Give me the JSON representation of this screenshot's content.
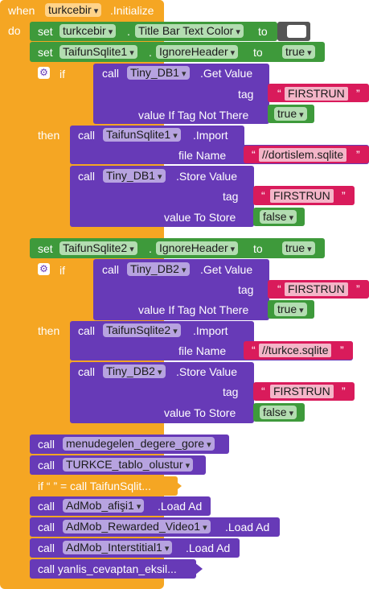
{
  "event": {
    "when": "when",
    "component": "turkcebir",
    "event_name": ".Initialize",
    "do": "do"
  },
  "kw": {
    "set": "set",
    "to": "to",
    "call": "call",
    "if": "if",
    "then": "then",
    "dot": ".",
    "q": "“",
    "qe": "”"
  },
  "colors": {
    "event": "#F5A623",
    "set_block": "#3E9A3B",
    "call_block": "#673AB7",
    "text_block": "#D91B5B"
  },
  "b1": {
    "component": "turkcebir",
    "property": "Title Bar Text Color"
  },
  "b2": {
    "component": "TaifunSqlite1",
    "property": "IgnoreHeader",
    "value": "true"
  },
  "if1": {
    "call_component": "Tiny_DB1",
    "call_method": ".Get Value",
    "tag_label": "tag",
    "tag_value": "FIRSTRUN",
    "default_label": "value If Tag Not There",
    "default_value": "true",
    "import_component": "TaifunSqlite1",
    "import_method": ".Import",
    "file_label": "file Name",
    "file_value": "//dortislem.sqlite",
    "store_component": "Tiny_DB1",
    "store_method": ".Store Value",
    "store_tag_label": "tag",
    "store_tag_value": "FIRSTRUN",
    "store_value_label": "value To Store",
    "store_value": "false"
  },
  "b3": {
    "component": "TaifunSqlite2",
    "property": "IgnoreHeader",
    "value": "true"
  },
  "if2": {
    "call_component": "Tiny_DB2",
    "call_method": ".Get Value",
    "tag_label": "tag",
    "tag_value": "FIRSTRUN",
    "default_label": "value If Tag Not There",
    "default_value": "true",
    "import_component": "TaifunSqlite2",
    "import_method": ".Import",
    "file_label": "file Name",
    "file_value": "//turkce.sqlite",
    "store_component": "Tiny_DB2",
    "store_method": ".Store Value",
    "store_tag_label": "tag",
    "store_tag_value": "FIRSTRUN",
    "store_value_label": "value To Store",
    "store_value": "false"
  },
  "calls": {
    "c1": "menudegelen_degere_gore",
    "c2": "TURKCE_tablo_olustur",
    "collapsed_if": "if “  ” = call  TaifunSqlit...",
    "c3_component": "AdMob_afişi1",
    "c3_method": ".Load Ad",
    "c4_component": "AdMob_Rewarded_Video1",
    "c4_method": ".Load Ad",
    "c5_component": "AdMob_Interstitial1",
    "c5_method": ".Load Ad",
    "collapsed_call": "call  yanlis_cevaptan_eksil..."
  }
}
